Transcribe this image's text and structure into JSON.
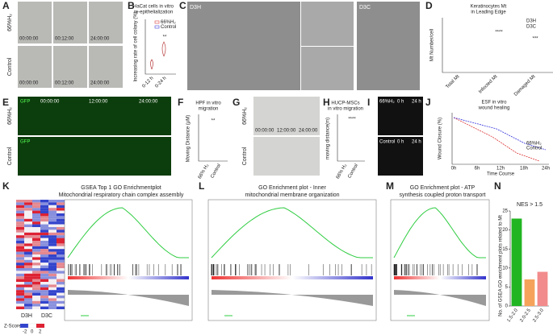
{
  "panels": {
    "A": {
      "label": "A",
      "rows": [
        "66%H₂",
        "Control"
      ],
      "times": [
        "00:00:00",
        "00:12:00",
        "24:00:00",
        "00:00:00",
        "00:12:00",
        "24:00:00"
      ]
    },
    "B": {
      "label": "B",
      "title": [
        "HaCat cells in vitro",
        "re-epithelialization"
      ],
      "y_label": "Increasing rate of cell colony (%)",
      "legend": [
        "66%H₂",
        "Control"
      ],
      "categories": [
        "0-12 h",
        "0-24 h"
      ],
      "significance": "**"
    },
    "C": {
      "label": "C",
      "groups": [
        "D3H",
        "D3C"
      ]
    },
    "D": {
      "label": "D",
      "title": [
        "Keratinocytes Mt",
        "in Leading Edge"
      ],
      "y_label": "Mt Number/cell",
      "legend": [
        "D3H",
        "D3C"
      ],
      "categories": [
        "Total Mt",
        "Infected Mt",
        "Damaged Mt"
      ],
      "significance": [
        "****",
        "***"
      ]
    },
    "E": {
      "label": "E",
      "rows": [
        "66%H₂",
        "Control"
      ],
      "channel": "GFP",
      "times": [
        "00:00:00",
        "12:00:00",
        "24:00:00"
      ]
    },
    "F": {
      "label": "F",
      "title": [
        "HPF in vitro",
        "migration"
      ],
      "y_label": "Moving Distance (μM)",
      "categories": [
        "66% H₂",
        "Control"
      ],
      "significance": "**"
    },
    "G": {
      "label": "G",
      "rows": [
        "66%H₂",
        "Control"
      ],
      "times": [
        "00:00:00",
        "12:00:00",
        "24:00:00"
      ]
    },
    "H": {
      "label": "H",
      "title": [
        "HUCP-MSCs",
        "in vitro migration"
      ],
      "y_label": "moving distance(m)",
      "categories": [
        "66% H₂",
        "Control"
      ],
      "significance": "****"
    },
    "I": {
      "label": "I",
      "rows": [
        "66%H₂",
        "Control"
      ],
      "times": [
        "0 h",
        "24 h"
      ]
    },
    "J": {
      "label": "J",
      "title": [
        "ESF in vitro",
        "wound healing"
      ],
      "y_label": "Wound Closure (%)",
      "x_label": "Time Course",
      "legend": [
        "66%H₂",
        "Control"
      ],
      "xticks": [
        "0h",
        "6h",
        "12h",
        "18h",
        "24h"
      ]
    },
    "K": {
      "label": "K",
      "title": [
        "GSEA Top 1 GO Enrichmentplot",
        "Mitochondrial respiratory chain complex assembly"
      ],
      "groups": [
        "D3H",
        "D3C"
      ],
      "scale_title": "Z-Score",
      "scale": [
        "-2",
        "0",
        "2"
      ]
    },
    "L": {
      "label": "L",
      "title": [
        "GO Enrichment plot - Inner",
        "mitochondrial membrane organization"
      ]
    },
    "M": {
      "label": "M",
      "title": [
        "GO Enrichment plot - ATP",
        "synthesis coupled proton transport"
      ]
    },
    "N": {
      "label": "N"
    }
  },
  "chart_data": {
    "type": "bar",
    "title": "NES > 1.5",
    "y_label": "No. of GSEA GO enrichment plots related to Mt",
    "categories": [
      "1.5-2.0",
      "2.0-2.5",
      "2.5-3.0"
    ],
    "values": [
      23,
      7,
      9
    ],
    "colors": [
      "#22b522",
      "#f5a35a",
      "#f28b8b"
    ],
    "ylim": [
      0,
      25
    ],
    "yticks": [
      0,
      5,
      10,
      15,
      20,
      25
    ]
  }
}
